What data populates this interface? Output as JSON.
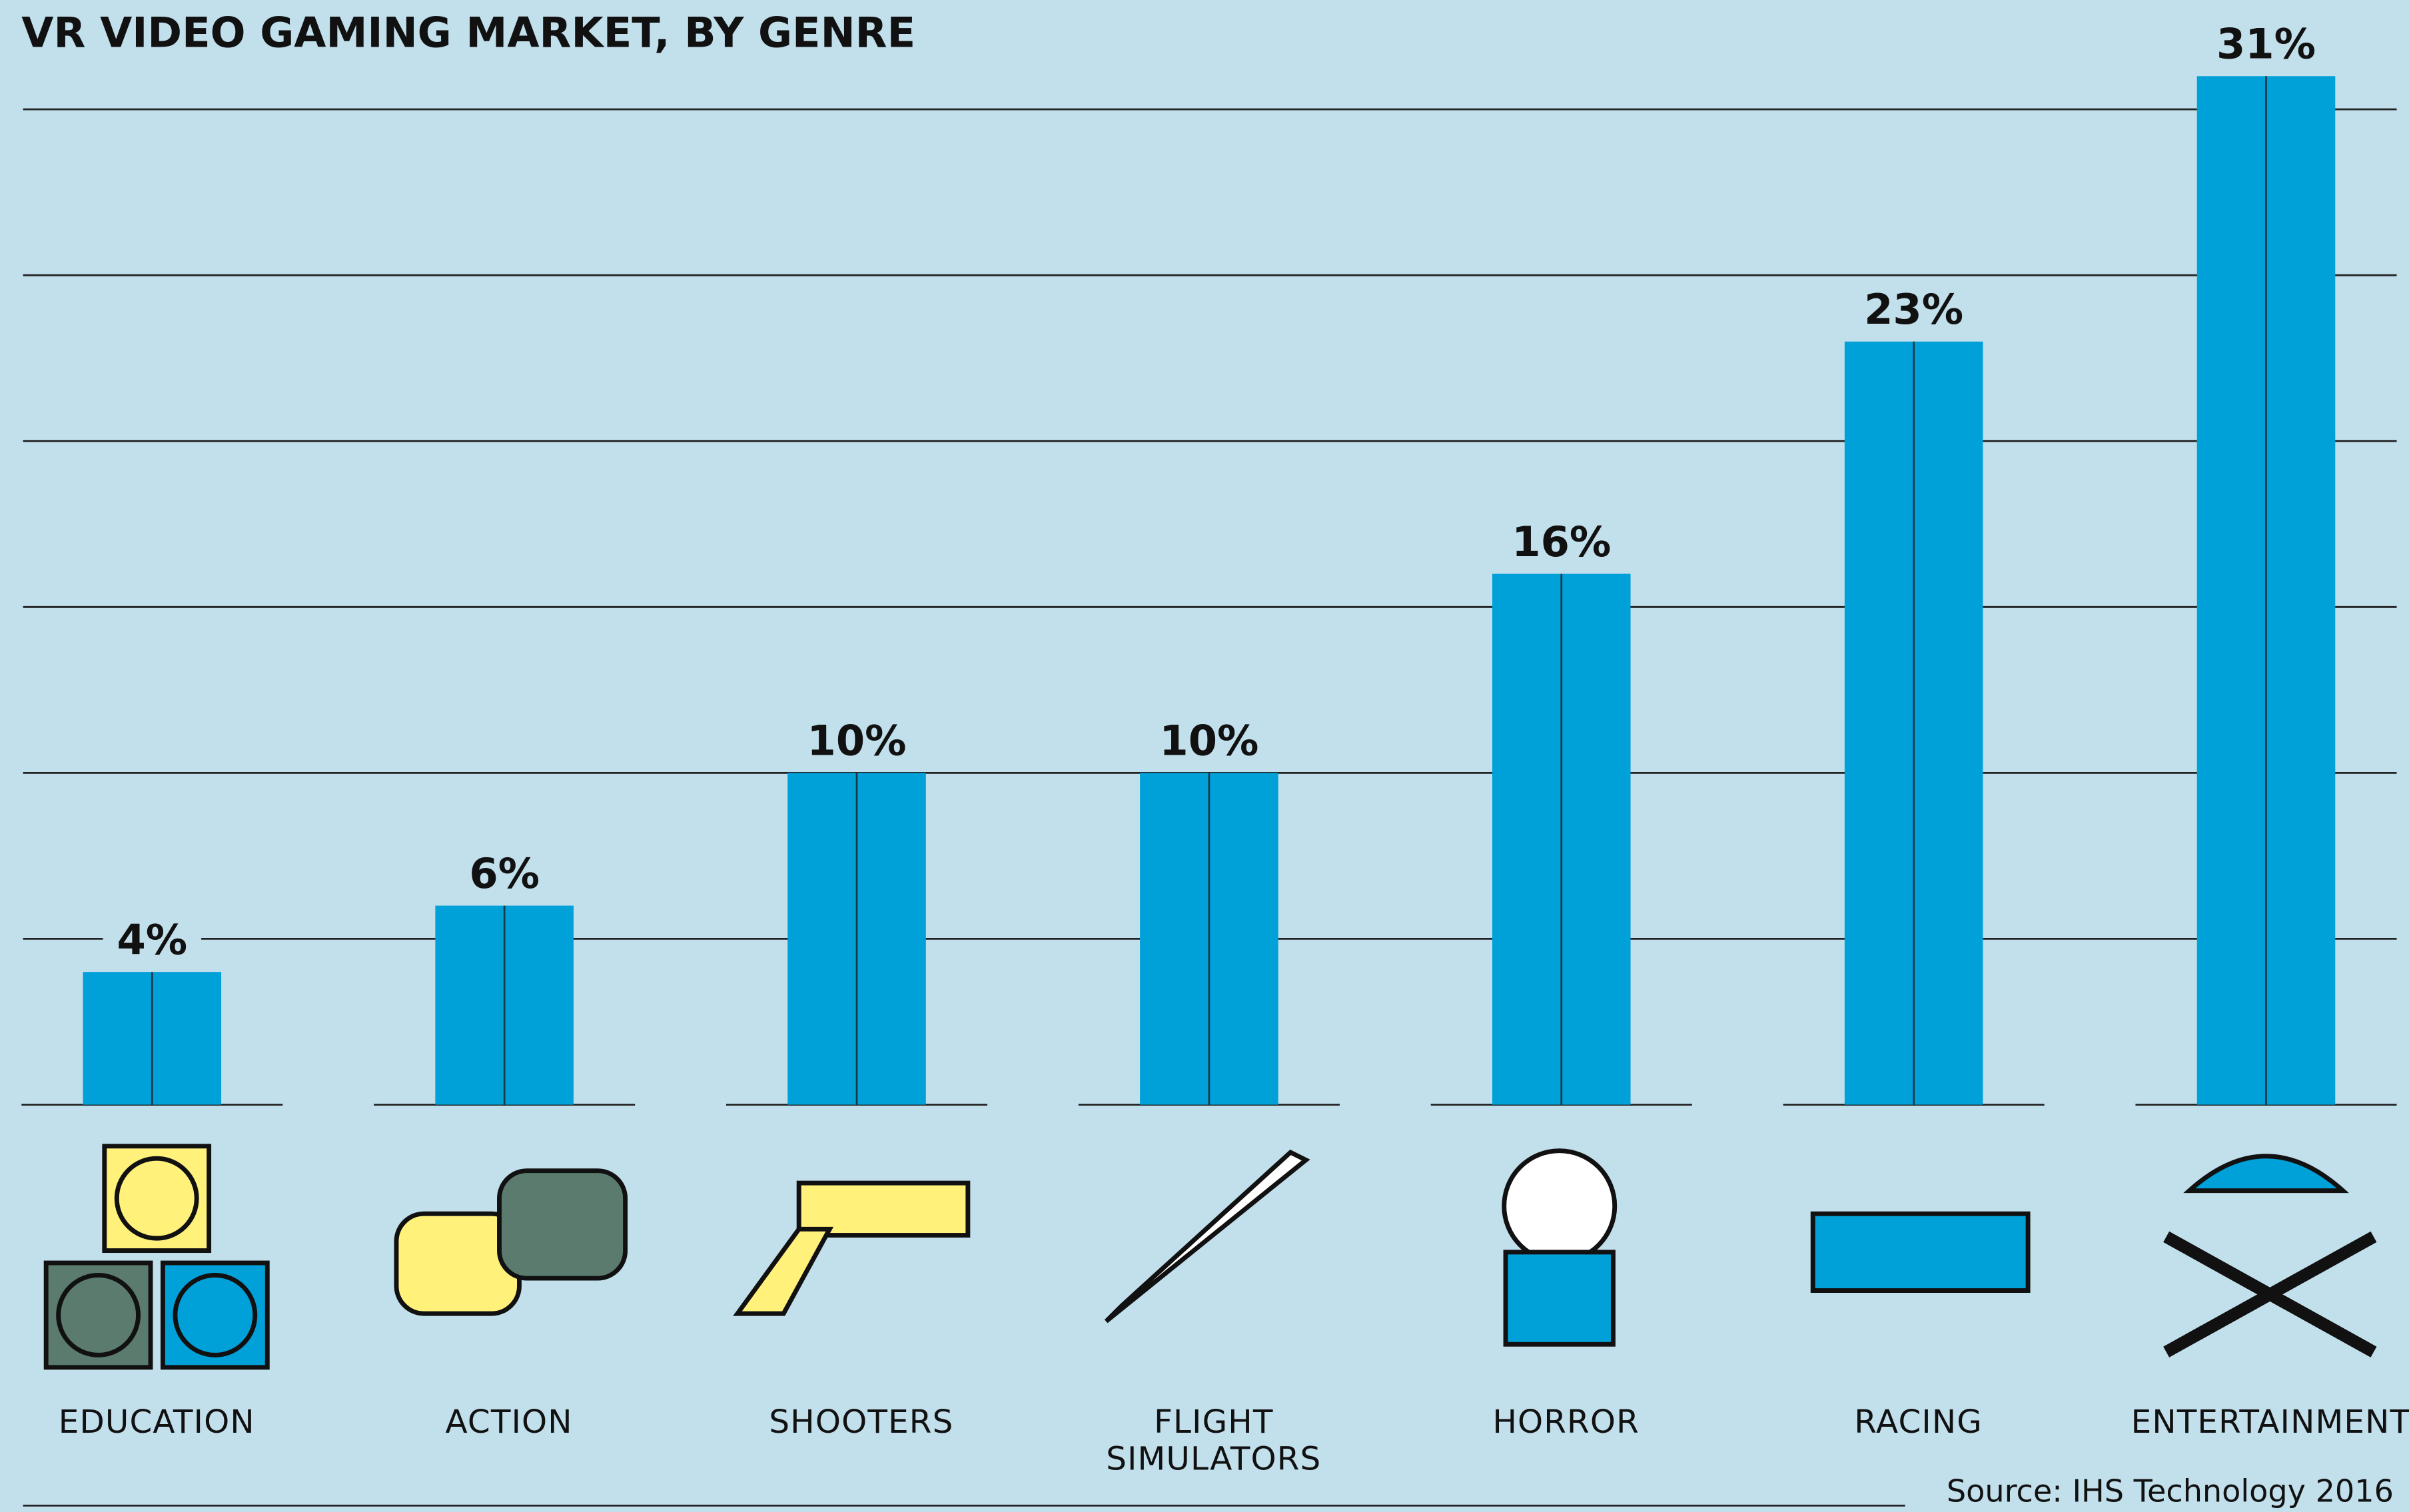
{
  "chart_data": {
    "type": "bar",
    "title": "VR VIDEO GAMING MARKET, BY GENRE",
    "categories": [
      "EDUCATION",
      "ACTION",
      "SHOOTERS",
      "FLIGHT SIMULATORS",
      "HORROR",
      "RACING",
      "ENTERTAINMENT"
    ],
    "values": [
      4,
      6,
      10,
      10,
      16,
      23,
      31
    ],
    "value_labels": [
      "4%",
      "6%",
      "10%",
      "10%",
      "16%",
      "23%",
      "31%"
    ],
    "color": "#00a0d8",
    "ylim": [
      0,
      30
    ],
    "yticks": [
      0,
      5,
      10,
      15,
      20,
      25,
      30
    ],
    "grid": true,
    "source": "Source: IHS Technology 2016"
  }
}
